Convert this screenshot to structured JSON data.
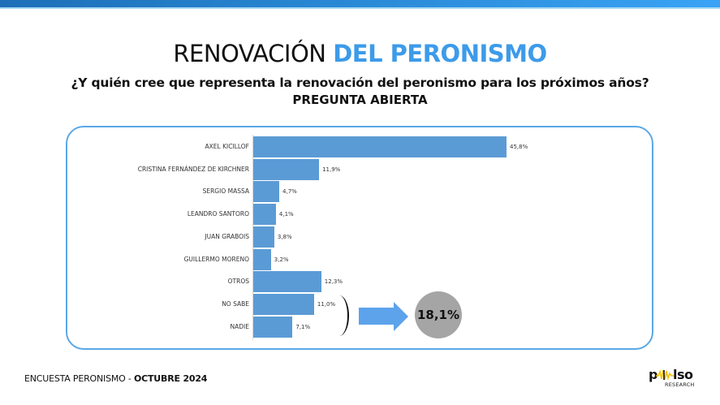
{
  "header": {
    "title_plain": "RENOVACIÓN",
    "title_accent": "DEL PERONISMO",
    "question": "¿Y quién cree que representa la renovación del peronismo para los próximos años?",
    "question_type": "PREGUNTA ABIERTA"
  },
  "colors": {
    "accent": "#3d9be9",
    "bar": "#5b9bd5",
    "panel_border": "#5aa8e6",
    "arrow": "#5ca3ec",
    "circle": "#a5a5a5",
    "topbar_start": "#1d6fb8",
    "topbar_end": "#3aa3f5"
  },
  "chart_data": {
    "type": "bar",
    "orientation": "horizontal",
    "title": "RENOVACIÓN DEL PERONISMO",
    "subtitle": "¿Y quién cree que representa la renovación del peronismo para los próximos años? PREGUNTA ABIERTA",
    "categories": [
      "AXEL KICILLOF",
      "CRISTINA FERNÁNDEZ DE KIRCHNER",
      "SERGIO MASSA",
      "LEANDRO SANTORO",
      "JUAN GRABOIS",
      "GUILLERMO MORENO",
      "OTROS",
      "NO SABE",
      "NADIE"
    ],
    "values": [
      45.8,
      11.9,
      4.7,
      4.1,
      3.8,
      3.2,
      12.3,
      11.0,
      7.1
    ],
    "value_labels": [
      "45,8%",
      "11,9%",
      "4,7%",
      "4,1%",
      "3,8%",
      "3,2%",
      "12,3%",
      "11,0%",
      "7,1%"
    ],
    "xlabel": "",
    "ylabel": "",
    "unit": "%",
    "grid": false,
    "legend": null,
    "annotations": [
      {
        "type": "bracket",
        "covers": [
          "NO SABE",
          "NADIE"
        ]
      },
      {
        "type": "arrow",
        "direction": "right"
      },
      {
        "type": "circle",
        "label": "18,1%",
        "value": 18.1
      }
    ]
  },
  "summary": {
    "combined_label": "18,1%"
  },
  "footer": {
    "survey": "ENCUESTA PERONISMO - ",
    "date": "OCTUBRE 2024"
  },
  "logo": {
    "name": "pulso",
    "name_prefix": "p",
    "name_suffix": "lso",
    "sub": "RESEARCH"
  }
}
